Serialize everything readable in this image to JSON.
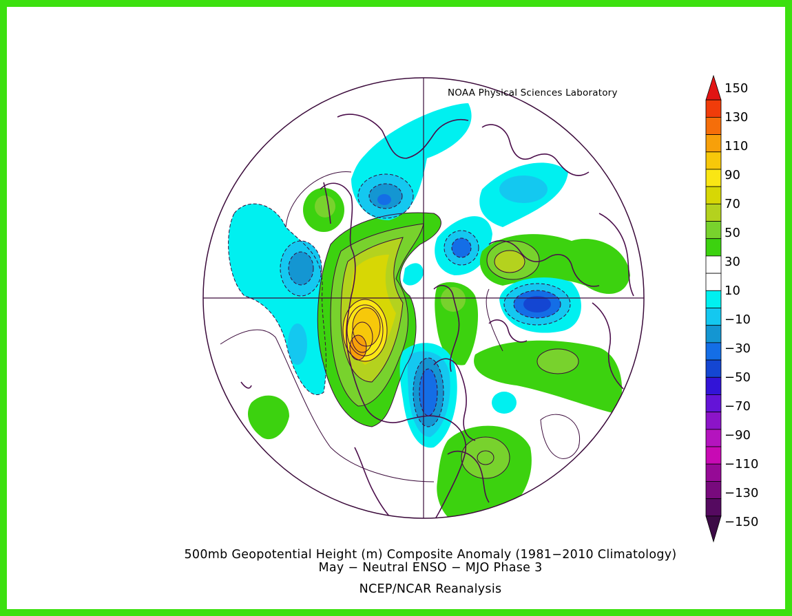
{
  "credit": "NOAA Physical Sciences Laboratory",
  "caption": {
    "line1": "500mb Geopotential Height (m) Composite Anomaly (1981−2010 Climatology)",
    "line2": "May − Neutral ENSO − MJO Phase 3",
    "line3": "NCEP/NCAR Reanalysis"
  },
  "colors": {
    "frame": "#3ce00f",
    "background": "#ffffff",
    "coast": "#4b0e4b",
    "contour": "#3a0a3a"
  },
  "colorbar": {
    "labels": [
      "150",
      "130",
      "110",
      "90",
      "70",
      "50",
      "30",
      "10",
      "−10",
      "−30",
      "−50",
      "−70",
      "−90",
      "−110",
      "−130",
      "−150"
    ],
    "colors_top_to_bottom": [
      "#e11414",
      "#f03c0a",
      "#f56e0a",
      "#f7a00a",
      "#f7c80a",
      "#fae614",
      "#d7d705",
      "#b4d21e",
      "#78d22d",
      "#3cd20f",
      "#ffffff",
      "#ffffff",
      "#00f0f0",
      "#14c8f0",
      "#1496d2",
      "#146ee6",
      "#1446d2",
      "#3214d7",
      "#6414d7",
      "#8c14c8",
      "#b414be",
      "#c80ab4",
      "#960a96",
      "#780a7d",
      "#550a60",
      "#3c0a46"
    ]
  },
  "map_fields": [
    {
      "kind": "anomaly",
      "value": "-15",
      "color": "#14c8f0"
    },
    {
      "kind": "anomaly",
      "value": "+80",
      "color": "#f7c80a"
    }
  ]
}
